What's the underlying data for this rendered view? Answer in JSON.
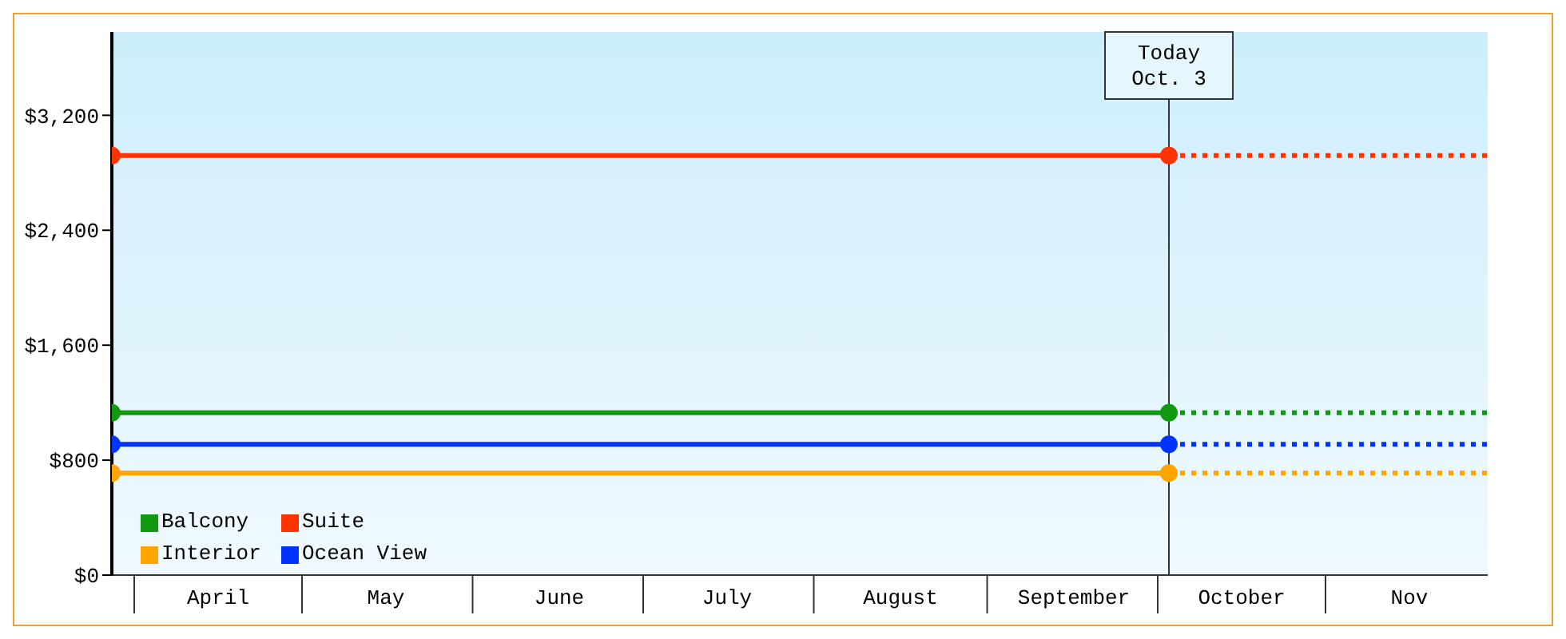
{
  "chart_data": {
    "type": "line",
    "xlim": [
      "--03-28",
      "--11-29"
    ],
    "xticks": [
      {
        "value": "--04-16",
        "label": "April"
      },
      {
        "value": "--05-16",
        "label": "May"
      },
      {
        "value": "--06-16",
        "label": "June"
      },
      {
        "value": "--07-16",
        "label": "July"
      },
      {
        "value": "--08-16",
        "label": "August"
      },
      {
        "value": "--09-16",
        "label": "September"
      },
      {
        "value": "--10-16",
        "label": "October"
      },
      {
        "value": "--11-15",
        "label": "Nov"
      }
    ],
    "ylim": [
      0,
      3780
    ],
    "yticks": [
      {
        "value": 0,
        "label": "$0"
      },
      {
        "value": 800,
        "label": "$800"
      },
      {
        "value": 1600,
        "label": "$1,600"
      },
      {
        "value": 2400,
        "label": "$2,400"
      },
      {
        "value": 3200,
        "label": "$3,200"
      }
    ],
    "series": [
      {
        "name": "Balcony",
        "color": "#119911",
        "x": [
          "--03-28",
          "--10-03"
        ],
        "values": [
          1130,
          1130
        ],
        "marker": "circle",
        "line_style": "solid"
      },
      {
        "name": "Suite",
        "color": "#ff3300",
        "x": [
          "--03-28",
          "--10-03"
        ],
        "values": [
          2920,
          2920
        ],
        "marker": "circle",
        "line_style": "solid"
      },
      {
        "name": "Interior",
        "color": "#ffa500",
        "x": [
          "--03-28",
          "--10-03"
        ],
        "values": [
          710,
          710
        ],
        "marker": "circle",
        "line_style": "solid"
      },
      {
        "name": "Ocean View",
        "color": "#0033ff",
        "x": [
          "--03-28",
          "--10-03"
        ],
        "values": [
          910,
          910
        ],
        "marker": "circle",
        "line_style": "solid"
      },
      {
        "color": "#119911",
        "x": [
          "--10-03",
          "--11-29"
        ],
        "values": [
          1130,
          1130
        ],
        "marker": "none",
        "line_style": "dotted"
      },
      {
        "color": "#ff3300",
        "x": [
          "--10-03",
          "--11-29"
        ],
        "values": [
          2920,
          2920
        ],
        "marker": "none",
        "line_style": "dotted"
      },
      {
        "color": "#ffa500",
        "x": [
          "--10-03",
          "--11-29"
        ],
        "values": [
          710,
          710
        ],
        "marker": "none",
        "line_style": "dotted"
      },
      {
        "color": "#0033ff",
        "x": [
          "--10-03",
          "--11-29"
        ],
        "values": [
          910,
          910
        ],
        "marker": "none",
        "line_style": "dotted"
      }
    ],
    "ref_lines": [
      {
        "axis": "x",
        "value": "--10-03",
        "label": "Today\nOct. 3",
        "color": "#333333"
      }
    ],
    "grid": false,
    "legend": "bottom left"
  }
}
